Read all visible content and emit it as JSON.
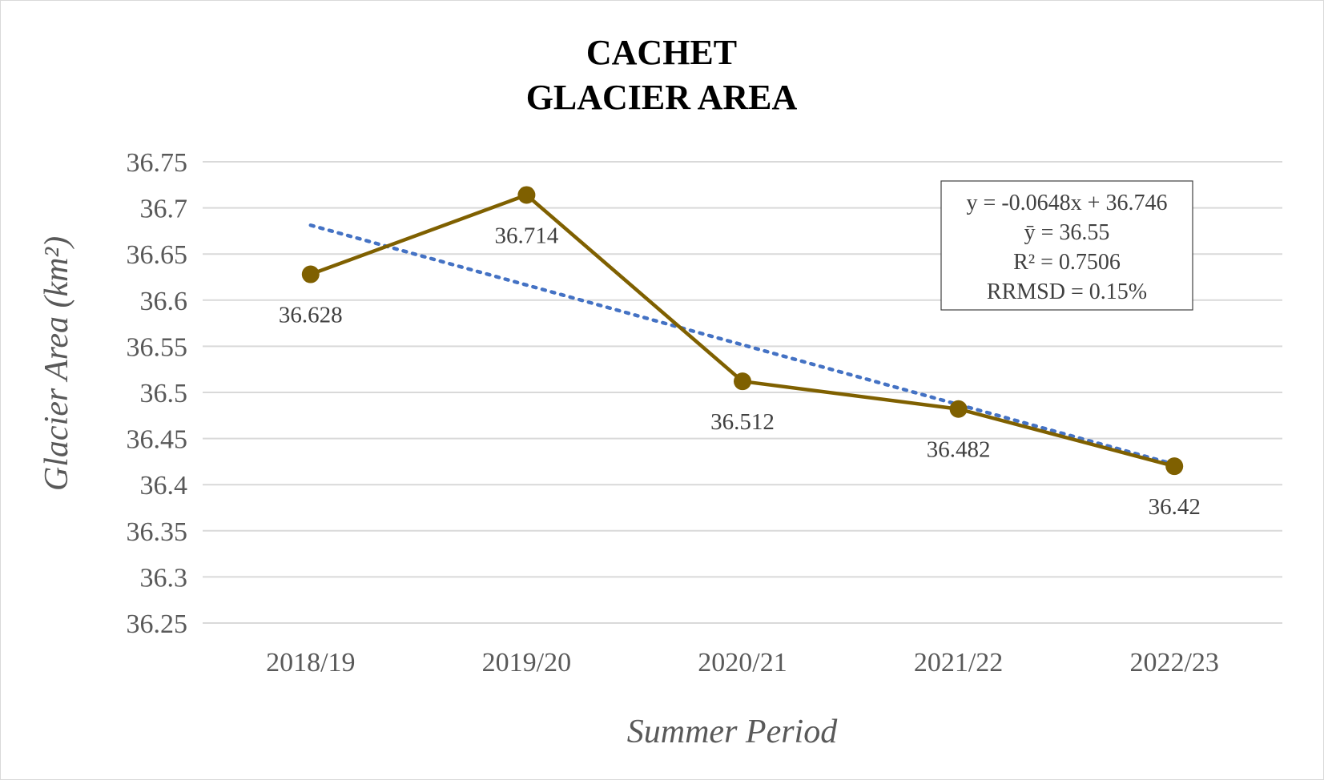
{
  "chart_data": {
    "type": "line",
    "title_lines": [
      "CACHET",
      "GLACIER AREA"
    ],
    "xlabel": "Summer Period",
    "ylabel": "Glacier Area (km²)",
    "categories": [
      "2018/19",
      "2019/20",
      "2020/21",
      "2021/22",
      "2022/23"
    ],
    "series": [
      {
        "values": [
          36.628,
          36.714,
          36.512,
          36.482,
          36.42
        ],
        "data_labels": [
          "36.628",
          "36.714",
          "36.512",
          "36.482",
          "36.42"
        ],
        "color": "#7f6000"
      }
    ],
    "trendline": {
      "type": "linear",
      "slope": -0.0648,
      "intercept": 36.746,
      "color": "#4472c4",
      "style": "dotted"
    },
    "annotation_lines": [
      "y = -0.0648x + 36.746",
      "ȳ = 36.55",
      "R² = 0.7506",
      "RRMSD = 0.15%"
    ],
    "y_ticks": [
      "36.25",
      "36.3",
      "36.35",
      "36.4",
      "36.45",
      "36.5",
      "36.55",
      "36.6",
      "36.65",
      "36.7",
      "36.75"
    ],
    "ylim": [
      36.25,
      36.75
    ],
    "grid": true,
    "legend": "none"
  }
}
